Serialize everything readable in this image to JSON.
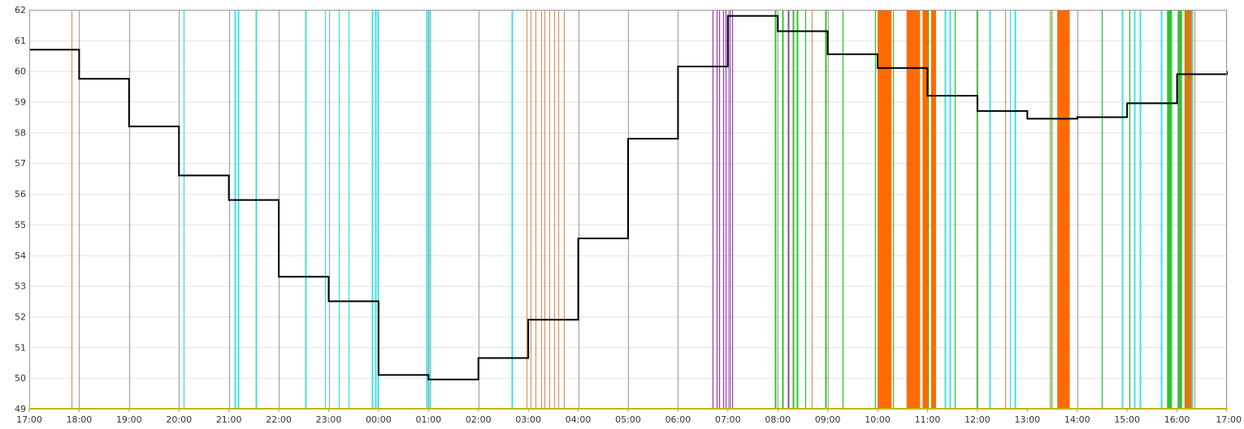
{
  "chart_data": {
    "type": "line",
    "title": "",
    "xlabel": "",
    "ylabel": "",
    "ylim": [
      49,
      62
    ],
    "yticks": [
      49,
      50,
      51,
      52,
      53,
      54,
      55,
      56,
      57,
      58,
      59,
      60,
      61,
      62
    ],
    "xlim": [
      0,
      24
    ],
    "xtick_labels": [
      "17:00",
      "18:00",
      "19:00",
      "20:00",
      "21:00",
      "22:00",
      "23:00",
      "00:00",
      "01:00",
      "02:00",
      "03:00",
      "04:00",
      "05:00",
      "06:00",
      "07:00",
      "08:00",
      "09:00",
      "10:00",
      "11:00",
      "12:00",
      "13:00",
      "14:00",
      "15:00",
      "16:00",
      "17:00"
    ],
    "grid": true,
    "colors": {
      "line": "#000000",
      "gray": "#a6a6a6",
      "cyan": "#40e0e0",
      "tan": "#d49a6a",
      "purple": "#9b3fc0",
      "green": "#2fc42f",
      "orange": "#ff6a00",
      "baseline": "#c8b400",
      "grid": "#e2e2e2"
    },
    "series": [
      {
        "type": "step",
        "x": [
          0,
          1,
          2,
          3,
          4,
          5,
          6,
          7,
          8,
          9,
          10,
          11,
          12,
          13,
          14,
          15,
          16,
          17,
          18,
          19,
          20,
          21,
          22,
          23,
          24
        ],
        "values": [
          60.7,
          59.75,
          58.2,
          56.6,
          55.8,
          53.3,
          52.5,
          50.1,
          49.95,
          50.65,
          51.9,
          54.55,
          57.8,
          60.15,
          61.8,
          61.3,
          60.55,
          60.1,
          59.2,
          58.7,
          58.45,
          58.5,
          58.95,
          59.9,
          60.0
        ]
      }
    ],
    "event_lines": [
      {
        "x": 1.0,
        "color": "gray"
      },
      {
        "x": 2.0,
        "color": "gray"
      },
      {
        "x": 3.0,
        "color": "gray"
      },
      {
        "x": 4.0,
        "color": "gray"
      },
      {
        "x": 5.0,
        "color": "gray"
      },
      {
        "x": 6.0,
        "color": "gray"
      },
      {
        "x": 8.0,
        "color": "gray"
      },
      {
        "x": 9.0,
        "color": "gray"
      },
      {
        "x": 11.0,
        "color": "gray"
      },
      {
        "x": 12.0,
        "color": "gray"
      },
      {
        "x": 13.0,
        "color": "gray"
      },
      {
        "x": 14.0,
        "color": "gray"
      },
      {
        "x": 15.0,
        "color": "gray"
      },
      {
        "x": 16.0,
        "color": "gray"
      },
      {
        "x": 19.0,
        "color": "gray"
      },
      {
        "x": 21.0,
        "color": "gray"
      },
      {
        "x": 23.0,
        "color": "gray"
      },
      {
        "x": 0.85,
        "color": "tan"
      },
      {
        "x": 3.1,
        "color": "cyan"
      },
      {
        "x": 4.12,
        "color": "cyan",
        "w": 2
      },
      {
        "x": 4.18,
        "color": "cyan",
        "w": 2
      },
      {
        "x": 4.55,
        "color": "cyan",
        "w": 2
      },
      {
        "x": 5.53,
        "color": "cyan",
        "w": 2
      },
      {
        "x": 5.92,
        "color": "cyan"
      },
      {
        "x": 6.2,
        "color": "cyan"
      },
      {
        "x": 6.4,
        "color": "cyan"
      },
      {
        "x": 6.87,
        "color": "cyan",
        "w": 2
      },
      {
        "x": 6.93,
        "color": "cyan",
        "w": 2
      },
      {
        "x": 6.98,
        "color": "cyan",
        "w": 2
      },
      {
        "x": 7.97,
        "color": "cyan",
        "w": 2
      },
      {
        "x": 8.03,
        "color": "cyan",
        "w": 2
      },
      {
        "x": 9.67,
        "color": "cyan",
        "w": 2
      },
      {
        "x": 9.97,
        "color": "tan"
      },
      {
        "x": 10.05,
        "color": "tan"
      },
      {
        "x": 10.15,
        "color": "tan"
      },
      {
        "x": 10.25,
        "color": "tan"
      },
      {
        "x": 10.33,
        "color": "tan"
      },
      {
        "x": 10.42,
        "color": "tan"
      },
      {
        "x": 10.52,
        "color": "tan"
      },
      {
        "x": 10.6,
        "color": "tan"
      },
      {
        "x": 10.72,
        "color": "tan"
      },
      {
        "x": 13.7,
        "color": "purple"
      },
      {
        "x": 13.77,
        "color": "purple"
      },
      {
        "x": 13.83,
        "color": "purple"
      },
      {
        "x": 13.9,
        "color": "purple"
      },
      {
        "x": 13.96,
        "color": "purple"
      },
      {
        "x": 14.03,
        "color": "purple"
      },
      {
        "x": 14.08,
        "color": "purple"
      },
      {
        "x": 14.95,
        "color": "green",
        "w": 2
      },
      {
        "x": 15.1,
        "color": "green",
        "w": 2
      },
      {
        "x": 15.2,
        "color": "purple",
        "w": 2
      },
      {
        "x": 15.3,
        "color": "green",
        "w": 2
      },
      {
        "x": 15.38,
        "color": "green",
        "w": 2
      },
      {
        "x": 15.55,
        "color": "green"
      },
      {
        "x": 15.68,
        "color": "tan"
      },
      {
        "x": 15.95,
        "color": "green",
        "w": 2
      },
      {
        "x": 16.3,
        "color": "green"
      },
      {
        "x": 16.95,
        "color": "green"
      },
      {
        "x": 17.3,
        "color": "green"
      },
      {
        "x": 18.0,
        "color": "green"
      },
      {
        "x": 18.55,
        "color": "green"
      },
      {
        "x": 18.98,
        "color": "green"
      },
      {
        "x": 18.35,
        "color": "cyan",
        "w": 2
      },
      {
        "x": 18.45,
        "color": "cyan",
        "w": 2
      },
      {
        "x": 19.25,
        "color": "cyan",
        "w": 2
      },
      {
        "x": 19.55,
        "color": "tan"
      },
      {
        "x": 19.65,
        "color": "cyan"
      },
      {
        "x": 19.75,
        "color": "cyan",
        "w": 2
      },
      {
        "x": 20.45,
        "color": "tan"
      },
      {
        "x": 20.48,
        "color": "green"
      },
      {
        "x": 21.5,
        "color": "green"
      },
      {
        "x": 21.9,
        "color": "cyan",
        "w": 2
      },
      {
        "x": 22.05,
        "color": "green"
      },
      {
        "x": 22.15,
        "color": "cyan",
        "w": 2
      },
      {
        "x": 22.25,
        "color": "cyan",
        "w": 2
      },
      {
        "x": 22.68,
        "color": "cyan",
        "w": 2
      },
      {
        "x": 23.2,
        "color": "green"
      },
      {
        "x": 23.3,
        "color": "cyan",
        "w": 2
      },
      {
        "x": 23.35,
        "color": "tan"
      },
      {
        "x": 23.98,
        "color": "gray"
      }
    ],
    "event_bands": [
      {
        "x0": 17.0,
        "x1": 17.28,
        "color": "orange"
      },
      {
        "x0": 17.58,
        "x1": 17.85,
        "color": "orange"
      },
      {
        "x0": 17.9,
        "x1": 18.03,
        "color": "orange"
      },
      {
        "x0": 18.07,
        "x1": 18.17,
        "color": "orange"
      },
      {
        "x0": 20.6,
        "x1": 20.85,
        "color": "orange"
      },
      {
        "x0": 22.8,
        "x1": 22.9,
        "color": "green"
      },
      {
        "x0": 23.02,
        "x1": 23.1,
        "color": "green"
      },
      {
        "x0": 23.15,
        "x1": 23.32,
        "color": "orange"
      }
    ]
  }
}
